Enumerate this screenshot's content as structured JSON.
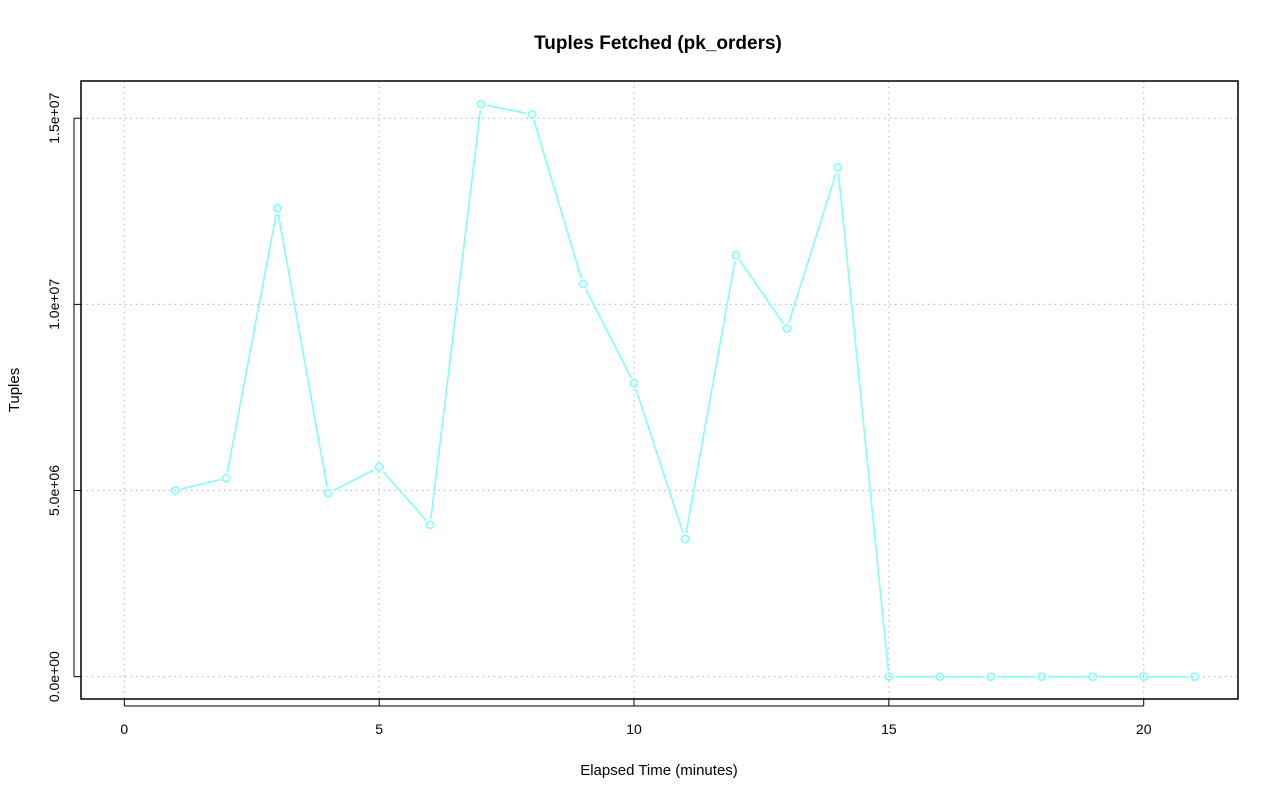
{
  "chart_data": {
    "type": "line",
    "title": "Tuples Fetched (pk_orders)",
    "xlabel": "Elapsed Time (minutes)",
    "ylabel": "Tuples",
    "xlim": [
      -0.85,
      21.85
    ],
    "ylim": [
      -600000,
      16000000
    ],
    "x_ticks": [
      0,
      5,
      10,
      15,
      20
    ],
    "x_tick_labels": [
      "0",
      "5",
      "10",
      "15",
      "20"
    ],
    "y_ticks": [
      0,
      5000000,
      10000000,
      15000000
    ],
    "y_tick_labels": [
      "0.0e+00",
      "5.0e+06",
      "1.0e+07",
      "1.5e+07"
    ],
    "grid": true,
    "series": [
      {
        "color": "#7FFFFF",
        "marker": "open-circle",
        "x": [
          1,
          2,
          3,
          4,
          5,
          6,
          7,
          8,
          9,
          10,
          11,
          12,
          13,
          14,
          15,
          16,
          17,
          18,
          19,
          20,
          21
        ],
        "y": [
          5000000,
          5330000,
          12580000,
          4930000,
          5630000,
          4080000,
          15380000,
          15100000,
          10550000,
          7880000,
          3700000,
          11320000,
          9350000,
          13680000,
          0,
          0,
          0,
          0,
          0,
          0,
          0
        ]
      }
    ]
  }
}
